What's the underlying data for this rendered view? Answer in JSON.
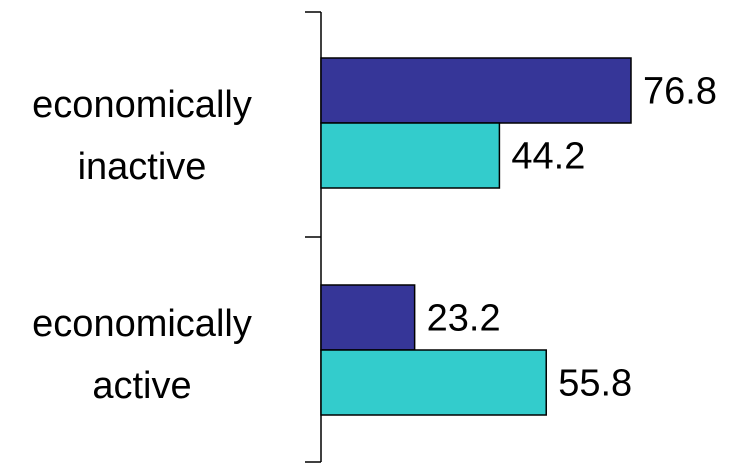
{
  "chart_data": {
    "type": "bar",
    "orientation": "horizontal",
    "title": "",
    "xlabel": "",
    "ylabel": "",
    "grid": false,
    "xlim": [
      0,
      76.8
    ],
    "categories": [
      [
        "economically",
        "inactive"
      ],
      [
        "economically",
        "active"
      ]
    ],
    "series": [
      {
        "color": "#363698",
        "values": [
          76.8,
          23.2
        ]
      },
      {
        "color": "#33cccc",
        "values": [
          44.2,
          55.8
        ]
      }
    ],
    "data_labels": [
      [
        "76.8",
        "44.2"
      ],
      [
        "23.2",
        "55.8"
      ]
    ]
  }
}
